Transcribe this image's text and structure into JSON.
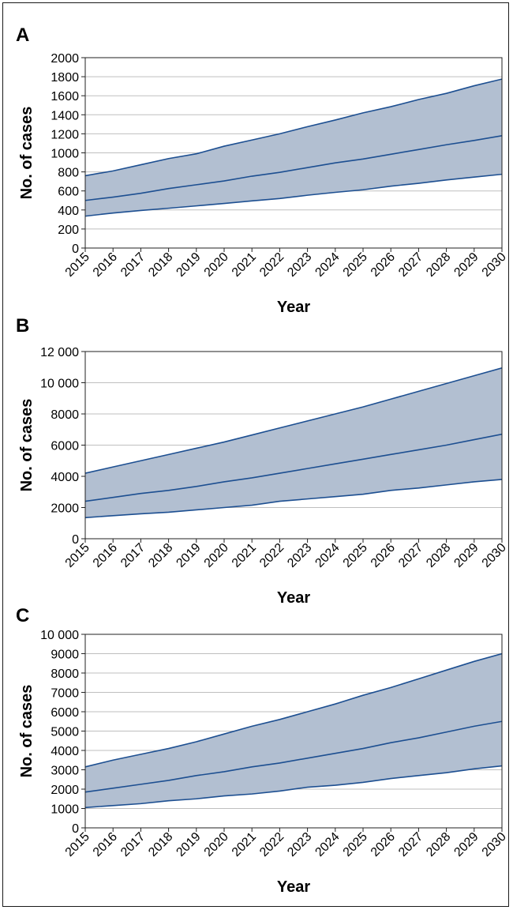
{
  "chart_data": [
    {
      "panel": "A",
      "type": "area",
      "xlabel": "Year",
      "ylabel": "No. of cases",
      "x": [
        2015,
        2016,
        2017,
        2018,
        2019,
        2020,
        2021,
        2022,
        2023,
        2024,
        2025,
        2026,
        2027,
        2028,
        2029,
        2030
      ],
      "ylim": [
        0,
        2000
      ],
      "yticks": [
        0,
        200,
        400,
        600,
        800,
        1000,
        1200,
        1400,
        1600,
        1800,
        2000
      ],
      "ytick_labels": [
        "0",
        "200",
        "400",
        "600",
        "800",
        "1000",
        "1200",
        "1400",
        "1600",
        "1800",
        "2000"
      ],
      "grid": true,
      "series": [
        {
          "role": "upper",
          "values": [
            760,
            810,
            875,
            940,
            990,
            1070,
            1135,
            1200,
            1275,
            1345,
            1420,
            1485,
            1560,
            1625,
            1705,
            1775
          ]
        },
        {
          "role": "middle",
          "values": [
            500,
            535,
            575,
            625,
            665,
            705,
            755,
            795,
            845,
            895,
            935,
            985,
            1035,
            1085,
            1130,
            1180
          ]
        },
        {
          "role": "lower",
          "values": [
            335,
            368,
            395,
            418,
            443,
            468,
            495,
            520,
            555,
            585,
            612,
            650,
            680,
            715,
            745,
            775
          ]
        }
      ]
    },
    {
      "panel": "B",
      "type": "area",
      "xlabel": "Year",
      "ylabel": "No. of cases",
      "x": [
        2015,
        2016,
        2017,
        2018,
        2019,
        2020,
        2021,
        2022,
        2023,
        2024,
        2025,
        2026,
        2027,
        2028,
        2029,
        2030
      ],
      "ylim": [
        0,
        12000
      ],
      "yticks": [
        0,
        2000,
        4000,
        6000,
        8000,
        10000,
        12000
      ],
      "ytick_labels": [
        "0",
        "2000",
        "4000",
        "6000",
        "8000",
        "10 000",
        "12 000"
      ],
      "grid": true,
      "series": [
        {
          "role": "upper",
          "values": [
            4200,
            4600,
            5000,
            5400,
            5800,
            6200,
            6650,
            7100,
            7550,
            8000,
            8450,
            8950,
            9450,
            9950,
            10450,
            10950
          ]
        },
        {
          "role": "middle",
          "values": [
            2400,
            2650,
            2900,
            3100,
            3350,
            3650,
            3900,
            4200,
            4500,
            4800,
            5100,
            5400,
            5700,
            6000,
            6350,
            6700
          ]
        },
        {
          "role": "lower",
          "values": [
            1350,
            1480,
            1600,
            1700,
            1850,
            2000,
            2150,
            2400,
            2550,
            2700,
            2850,
            3100,
            3250,
            3450,
            3650,
            3800
          ]
        }
      ]
    },
    {
      "panel": "C",
      "type": "area",
      "xlabel": "Year",
      "ylabel": "No. of cases",
      "x": [
        2015,
        2016,
        2017,
        2018,
        2019,
        2020,
        2021,
        2022,
        2023,
        2024,
        2025,
        2026,
        2027,
        2028,
        2029,
        2030
      ],
      "ylim": [
        0,
        10000
      ],
      "yticks": [
        0,
        1000,
        2000,
        3000,
        4000,
        5000,
        6000,
        7000,
        8000,
        9000,
        10000
      ],
      "ytick_labels": [
        "0",
        "1000",
        "2000",
        "3000",
        "4000",
        "5000",
        "6000",
        "7000",
        "8000",
        "9000",
        "10 000"
      ],
      "grid": true,
      "series": [
        {
          "role": "upper",
          "values": [
            3150,
            3500,
            3800,
            4100,
            4450,
            4850,
            5250,
            5600,
            6000,
            6400,
            6850,
            7250,
            7700,
            8150,
            8600,
            9000
          ]
        },
        {
          "role": "middle",
          "values": [
            1850,
            2050,
            2250,
            2450,
            2700,
            2900,
            3150,
            3350,
            3600,
            3850,
            4100,
            4400,
            4650,
            4950,
            5250,
            5500
          ]
        },
        {
          "role": "lower",
          "values": [
            1050,
            1150,
            1250,
            1400,
            1500,
            1650,
            1750,
            1900,
            2100,
            2200,
            2350,
            2550,
            2700,
            2850,
            3050,
            3200
          ]
        }
      ]
    }
  ],
  "colors": {
    "band_fill": "#b2bfd1",
    "line": "#1d4f91",
    "grid": "#bfbfbf",
    "axis": "#222222"
  }
}
